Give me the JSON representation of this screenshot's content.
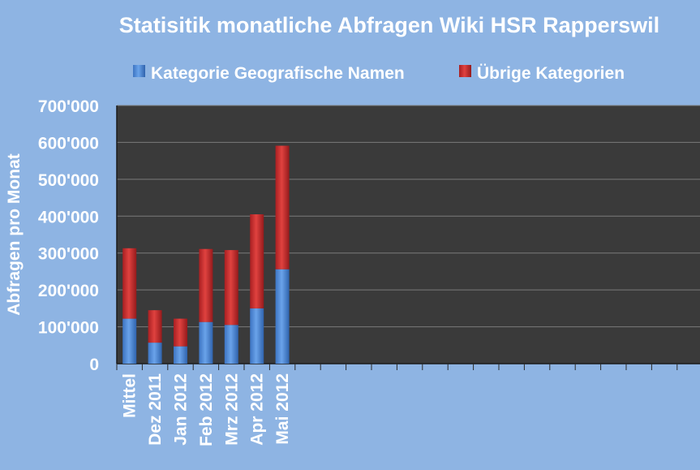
{
  "chart_data": {
    "type": "bar",
    "stacked": true,
    "title": "Statisitik monatliche Abfragen Wiki HSR Rapperswil",
    "xlabel": "",
    "ylabel": "Abfragen pro Monat",
    "categories": [
      "Mittel",
      "Dez 2011",
      "Jan 2012",
      "Feb 2012",
      "Mrz 2012",
      "Apr 2012",
      "Mai 2012"
    ],
    "series": [
      {
        "name": "Kategorie Geografische Namen",
        "color": "#4a86d6",
        "values": [
          122000,
          57000,
          47000,
          113000,
          105000,
          150000,
          256000
        ]
      },
      {
        "name": "Übrige Kategorien",
        "color": "#c8282a",
        "values": [
          191000,
          88000,
          75000,
          198000,
          203000,
          255000,
          335000
        ]
      }
    ],
    "ylim": [
      0,
      700000
    ],
    "yticks": [
      "0",
      "100'000",
      "200'000",
      "300'000",
      "400'000",
      "500'000",
      "600'000",
      "700'000"
    ],
    "slot_count": 22,
    "grid": true,
    "legend_position": "top",
    "plot_background": "#3a3a3a",
    "page_background": "#8eb4e3"
  }
}
